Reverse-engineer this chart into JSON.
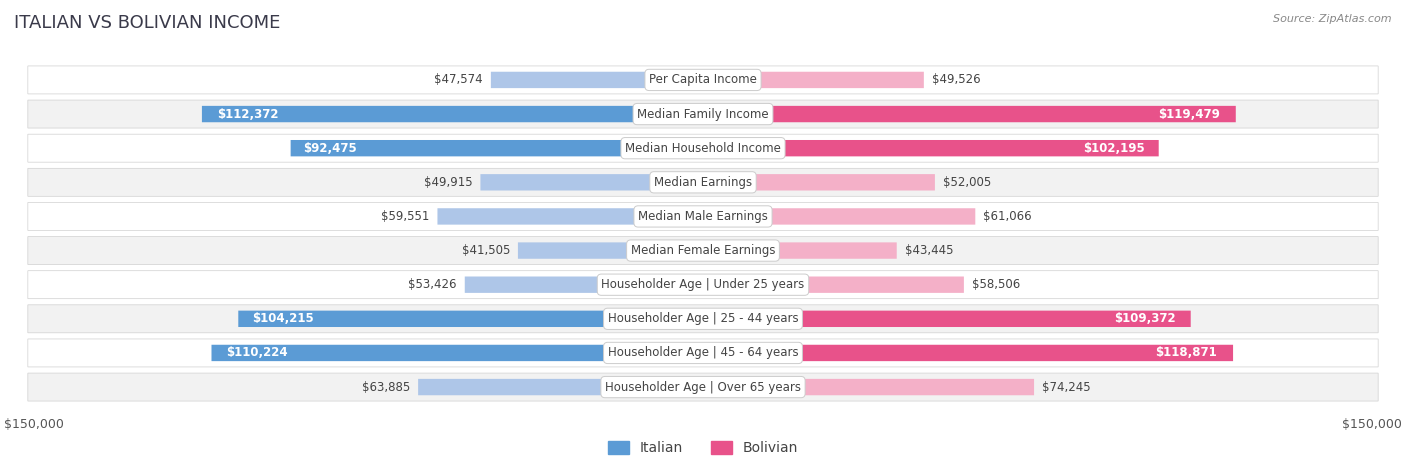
{
  "title": "ITALIAN VS BOLIVIAN INCOME",
  "source": "Source: ZipAtlas.com",
  "categories": [
    "Per Capita Income",
    "Median Family Income",
    "Median Household Income",
    "Median Earnings",
    "Median Male Earnings",
    "Median Female Earnings",
    "Householder Age | Under 25 years",
    "Householder Age | 25 - 44 years",
    "Householder Age | 45 - 64 years",
    "Householder Age | Over 65 years"
  ],
  "italian_values": [
    47574,
    112372,
    92475,
    49915,
    59551,
    41505,
    53426,
    104215,
    110224,
    63885
  ],
  "bolivian_values": [
    49526,
    119479,
    102195,
    52005,
    61066,
    43445,
    58506,
    109372,
    118871,
    74245
  ],
  "italian_labels": [
    "$47,574",
    "$112,372",
    "$92,475",
    "$49,915",
    "$59,551",
    "$41,505",
    "$53,426",
    "$104,215",
    "$110,224",
    "$63,885"
  ],
  "bolivian_labels": [
    "$49,526",
    "$119,479",
    "$102,195",
    "$52,005",
    "$61,066",
    "$43,445",
    "$58,506",
    "$109,372",
    "$118,871",
    "$74,245"
  ],
  "italian_color_light": "#aec6e8",
  "italian_color_dark": "#5b9bd5",
  "bolivian_color_light": "#f4b0c8",
  "bolivian_color_dark": "#e8528a",
  "max_value": 150000,
  "fig_bg": "#ffffff",
  "row_bg_odd": "#f2f2f2",
  "row_bg_even": "#ffffff",
  "title_fontsize": 13,
  "label_fontsize": 8.5,
  "value_fontsize": 8.5,
  "tick_fontsize": 9,
  "legend_fontsize": 10,
  "threshold_for_dark": 80000
}
